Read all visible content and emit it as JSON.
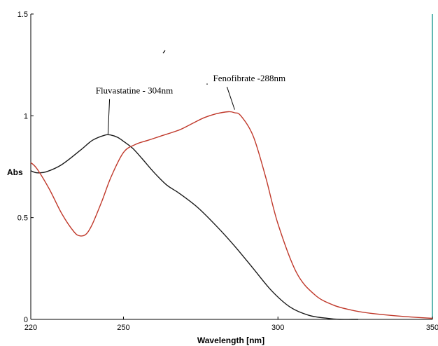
{
  "chart_data": {
    "type": "line",
    "xlabel": "Wavelength [nm]",
    "ylabel": "Abs",
    "xlim": [
      220,
      350
    ],
    "ylim": [
      0,
      1.5
    ],
    "x_ticks": [
      220,
      250,
      300,
      350
    ],
    "y_ticks": [
      0,
      0.5,
      1,
      1.5
    ],
    "x_tick_labels": [
      "220",
      "250",
      "300",
      "350"
    ],
    "y_tick_labels": [
      "0",
      "0.5",
      "1",
      "1.5"
    ],
    "grid": false,
    "series": [
      {
        "color": "#1a1a1a",
        "x": [
          220,
          222,
          225,
          230,
          236,
          240,
          244,
          246,
          248,
          250,
          253,
          256,
          260,
          264,
          268,
          274,
          280,
          286,
          292,
          298,
          304,
          310,
          316,
          320,
          324,
          326
        ],
        "y": [
          0.73,
          0.72,
          0.725,
          0.76,
          0.83,
          0.88,
          0.905,
          0.905,
          0.895,
          0.875,
          0.84,
          0.79,
          0.72,
          0.66,
          0.62,
          0.55,
          0.46,
          0.36,
          0.25,
          0.14,
          0.06,
          0.02,
          0.005,
          0.0,
          0.0,
          0.0
        ]
      },
      {
        "color": "#c0392b",
        "x": [
          220,
          222,
          226,
          230,
          234,
          236,
          238,
          240,
          243,
          246,
          250,
          254,
          258,
          262,
          268,
          272,
          276,
          280,
          284,
          286,
          288,
          292,
          296,
          300,
          306,
          312,
          318,
          324,
          330,
          340,
          350
        ],
        "y": [
          0.77,
          0.74,
          0.64,
          0.52,
          0.43,
          0.41,
          0.42,
          0.47,
          0.58,
          0.7,
          0.82,
          0.86,
          0.88,
          0.9,
          0.93,
          0.96,
          0.99,
          1.01,
          1.02,
          1.015,
          1.0,
          0.9,
          0.7,
          0.47,
          0.23,
          0.12,
          0.07,
          0.045,
          0.03,
          0.015,
          0.005
        ]
      }
    ],
    "annotations": [
      {
        "text": "Fluvastatine - 304nm",
        "x": 241,
        "y": 1.11,
        "to_x": 245,
        "to_y": 0.91
      },
      {
        "text": "Fenofibrate -288nm",
        "x": 279,
        "y": 1.17,
        "to_x": 286,
        "to_y": 1.03
      }
    ]
  }
}
